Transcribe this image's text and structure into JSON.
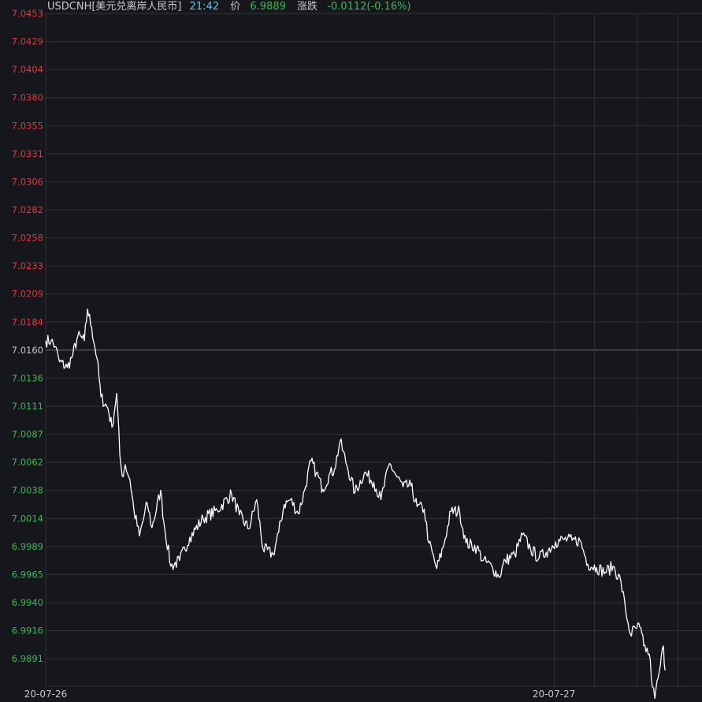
{
  "header": {
    "symbol": "USDCNH[美元兑离岸人民币]",
    "time": "21:42",
    "price_label": "价",
    "price": "6.9889",
    "change_label": "涨跌",
    "change": "-0.0112(-0.16%)"
  },
  "colors": {
    "background": "#15171c",
    "grid": "#2e3238",
    "up": "#e8333b",
    "down": "#3cb94f",
    "line": "#ffffff",
    "header_text": "#c8c8c8",
    "time": "#5fc8e6",
    "price": "#3cb94f",
    "xlabel": "#c8c8c8"
  },
  "chart_data": {
    "type": "line",
    "title": "",
    "xlabel": "",
    "ylabel": "",
    "grid": true,
    "legend": "none",
    "ylim": [
      6.9867,
      7.0453
    ],
    "reference_value": 7.016,
    "y_ticks": [
      "7.0453",
      "7.0429",
      "7.0404",
      "7.0380",
      "7.0355",
      "7.0331",
      "7.0306",
      "7.0282",
      "7.0258",
      "7.0233",
      "7.0209",
      "7.0184",
      "7.0160",
      "7.0136",
      "7.0111",
      "7.0087",
      "7.0062",
      "7.0038",
      "7.0014",
      "6.9989",
      "6.9965",
      "6.9940",
      "6.9916",
      "6.9891"
    ],
    "x_labels": [
      {
        "label": "20-07-26",
        "t": 0.0
      },
      {
        "label": "20-07-27",
        "t": 0.7744
      }
    ],
    "vertical_separators_t": [
      0.7744,
      0.8358,
      0.8998,
      0.9627
    ],
    "series": [
      {
        "name": "",
        "points": [
          [
            0.0,
            7.0173
          ],
          [
            0.0084,
            7.0173
          ],
          [
            0.0143,
            7.0168
          ],
          [
            0.0211,
            7.0155
          ],
          [
            0.0329,
            7.015
          ],
          [
            0.0413,
            7.0161
          ],
          [
            0.049,
            7.0177
          ],
          [
            0.0589,
            7.0173
          ],
          [
            0.0637,
            7.02
          ],
          [
            0.0701,
            7.0184
          ],
          [
            0.0782,
            7.0158
          ],
          [
            0.0842,
            7.0125
          ],
          [
            0.095,
            7.0115
          ],
          [
            0.101,
            7.0099
          ],
          [
            0.1082,
            7.0128
          ],
          [
            0.113,
            7.0075
          ],
          [
            0.1166,
            7.0057
          ],
          [
            0.1213,
            7.0067
          ],
          [
            0.1285,
            7.0054
          ],
          [
            0.1345,
            7.0028
          ],
          [
            0.1429,
            7.0006
          ],
          [
            0.1548,
            7.0034
          ],
          [
            0.162,
            7.0013
          ],
          [
            0.1752,
            7.0045
          ],
          [
            0.18,
            7.0018
          ],
          [
            0.1908,
            6.998
          ],
          [
            0.204,
            6.9985
          ],
          [
            0.2196,
            7.0005
          ],
          [
            0.24,
            7.0021
          ],
          [
            0.2615,
            7.0028
          ],
          [
            0.2832,
            7.0042
          ],
          [
            0.2951,
            7.0024
          ],
          [
            0.3095,
            7.0012
          ],
          [
            0.3214,
            7.0037
          ],
          [
            0.3311,
            6.9995
          ],
          [
            0.3466,
            6.999
          ],
          [
            0.355,
            7.0009
          ],
          [
            0.3634,
            7.0033
          ],
          [
            0.373,
            7.0037
          ],
          [
            0.385,
            7.0025
          ],
          [
            0.3945,
            7.0045
          ],
          [
            0.4041,
            7.007
          ],
          [
            0.4125,
            7.006
          ],
          [
            0.4221,
            7.0046
          ],
          [
            0.4317,
            7.0058
          ],
          [
            0.44,
            7.0063
          ],
          [
            0.4485,
            7.0087
          ],
          [
            0.4592,
            7.0066
          ],
          [
            0.4712,
            7.0043
          ],
          [
            0.4856,
            7.006
          ],
          [
            0.5,
            7.0052
          ],
          [
            0.5108,
            7.0037
          ],
          [
            0.524,
            7.0068
          ],
          [
            0.5348,
            7.0057
          ],
          [
            0.5444,
            7.0048
          ],
          [
            0.5564,
            7.0049
          ],
          [
            0.5659,
            7.0031
          ],
          [
            0.5767,
            7.0029
          ],
          [
            0.5839,
            7.0
          ],
          [
            0.5959,
            6.9978
          ],
          [
            0.6055,
            6.9996
          ],
          [
            0.6175,
            7.0027
          ],
          [
            0.6307,
            7.0027
          ],
          [
            0.6403,
            7.0
          ],
          [
            0.657,
            6.9996
          ],
          [
            0.6666,
            6.9985
          ],
          [
            0.681,
            6.9979
          ],
          [
            0.6906,
            6.9971
          ],
          [
            0.7002,
            6.9985
          ],
          [
            0.7146,
            6.999
          ],
          [
            0.7266,
            7.0007
          ],
          [
            0.7386,
            6.9995
          ],
          [
            0.7517,
            6.9987
          ],
          [
            0.7625,
            6.9992
          ],
          [
            0.7769,
            7.0001
          ],
          [
            0.7901,
            7.0003
          ],
          [
            0.8021,
            7.0002
          ],
          [
            0.8141,
            7.0002
          ],
          [
            0.8261,
            6.9982
          ],
          [
            0.8393,
            6.9979
          ],
          [
            0.8525,
            6.9975
          ],
          [
            0.8645,
            6.998
          ],
          [
            0.8765,
            6.9967
          ],
          [
            0.8837,
            6.9942
          ],
          [
            0.8909,
            6.9922
          ],
          [
            0.8993,
            6.9927
          ],
          [
            0.9053,
            6.9928
          ],
          [
            0.9113,
            6.9912
          ],
          [
            0.9197,
            6.9905
          ],
          [
            0.9245,
            6.9877
          ],
          [
            0.9281,
            6.9867
          ],
          [
            0.9329,
            6.9884
          ],
          [
            0.9365,
            6.9895
          ],
          [
            0.9413,
            6.9912
          ],
          [
            0.9437,
            6.9891
          ]
        ]
      }
    ]
  }
}
